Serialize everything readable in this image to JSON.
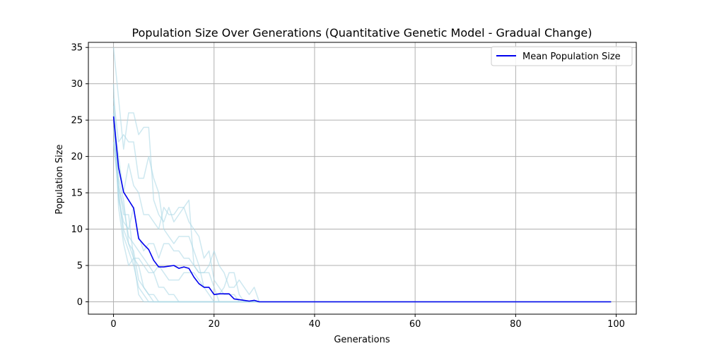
{
  "chart_data": {
    "type": "line",
    "title": "Population Size Over Generations (Quantitative Genetic Model - Gradual Change)",
    "xlabel": "Generations",
    "ylabel": "Population Size",
    "xlim": [
      -5,
      104
    ],
    "ylim": [
      -1.7,
      35.7
    ],
    "x_ticks": [
      0,
      20,
      40,
      60,
      80,
      100
    ],
    "y_ticks": [
      0,
      5,
      10,
      15,
      20,
      25,
      30,
      35
    ],
    "grid": true,
    "legend_position": "top-right",
    "colors": {
      "mean": "#0000ee",
      "runs": "#add8e6"
    },
    "series": [
      {
        "name": "Mean Population Size",
        "color": "#0000ee",
        "x": [
          0,
          1,
          2,
          3,
          4,
          5,
          6,
          7,
          8,
          9,
          10,
          11,
          12,
          13,
          14,
          15,
          16,
          17,
          18,
          19,
          20,
          21,
          22,
          23,
          24,
          25,
          26,
          27,
          28,
          29,
          99
        ],
        "y": [
          25.5,
          18.5,
          15.1,
          14.0,
          12.9,
          8.7,
          7.9,
          7.2,
          5.7,
          4.8,
          4.8,
          4.9,
          5.0,
          4.6,
          4.8,
          4.6,
          3.4,
          2.5,
          2.0,
          2.0,
          1.0,
          1.1,
          1.1,
          1.1,
          0.4,
          0.3,
          0.2,
          0.1,
          0.2,
          0.0,
          0.0
        ]
      }
    ],
    "runs": [
      {
        "x": [
          0,
          1,
          2,
          3,
          4,
          5,
          6,
          7,
          8,
          9,
          10,
          11,
          12,
          13,
          14,
          15,
          16,
          17,
          18,
          19,
          20,
          21,
          22,
          23,
          24,
          25,
          26,
          27,
          28,
          29,
          99
        ],
        "y": [
          35,
          28,
          21,
          26,
          26,
          23,
          24,
          24,
          14,
          12,
          11,
          13,
          11,
          12,
          13,
          14,
          5,
          4,
          4,
          5,
          7,
          5,
          4,
          2,
          2,
          3,
          2,
          1,
          2,
          0,
          0
        ]
      },
      {
        "x": [
          0,
          1,
          2,
          3,
          4,
          5,
          6,
          7,
          8,
          9,
          10,
          11,
          12,
          13,
          14,
          15,
          16,
          17,
          18,
          19,
          20,
          21,
          22,
          23,
          24,
          25,
          26,
          27,
          28,
          29,
          99
        ],
        "y": [
          28,
          22,
          23,
          22,
          22,
          17,
          17,
          20,
          17,
          15,
          10,
          9,
          8,
          9,
          9,
          9,
          7,
          5,
          2,
          2,
          1,
          1,
          2,
          4,
          4,
          1,
          0,
          0,
          0,
          0,
          0
        ]
      },
      {
        "x": [
          0,
          1,
          2,
          3,
          4,
          5,
          6,
          7,
          8,
          9,
          10,
          11,
          12,
          13,
          14,
          15,
          16,
          17,
          18,
          19,
          20,
          21,
          22,
          23,
          24,
          25,
          26,
          27,
          28,
          29,
          99
        ],
        "y": [
          25,
          20,
          15,
          19,
          16,
          15,
          12,
          12,
          11,
          10,
          13,
          12,
          12,
          13,
          13,
          11,
          10,
          9,
          6,
          7,
          3,
          2,
          1,
          1,
          1,
          0,
          0,
          0,
          0,
          0,
          0
        ]
      },
      {
        "x": [
          0,
          1,
          2,
          3,
          4,
          5,
          6,
          7,
          8,
          9,
          10,
          11,
          12,
          13,
          14,
          99
        ],
        "y": [
          24,
          16,
          12,
          12,
          6,
          6,
          5,
          4,
          4,
          2,
          2,
          1,
          1,
          0,
          0,
          0
        ]
      },
      {
        "x": [
          0,
          1,
          2,
          3,
          4,
          5,
          6,
          7,
          8,
          9,
          10,
          11,
          12,
          13,
          14,
          15,
          16,
          17,
          18,
          19,
          20,
          21,
          99
        ],
        "y": [
          22,
          16,
          13,
          9,
          8,
          7,
          6,
          5,
          4,
          5,
          4,
          3,
          3,
          3,
          4,
          4,
          4,
          3,
          2,
          1,
          0,
          0,
          0
        ]
      },
      {
        "x": [
          0,
          1,
          2,
          3,
          4,
          5,
          6,
          7,
          8,
          9,
          10,
          11,
          12,
          13,
          14,
          15,
          16,
          17,
          18,
          19,
          20,
          21,
          99
        ],
        "y": [
          30,
          14,
          11,
          10,
          13,
          9,
          7,
          8,
          8,
          6,
          8,
          8,
          7,
          7,
          6,
          6,
          5,
          4,
          4,
          4,
          2,
          0,
          0
        ]
      },
      {
        "x": [
          0,
          1,
          2,
          3,
          4,
          5,
          6,
          7,
          8,
          9,
          99
        ],
        "y": [
          22,
          15,
          9,
          7,
          5,
          2,
          1,
          0,
          0,
          0,
          0
        ]
      },
      {
        "x": [
          0,
          1,
          2,
          3,
          4,
          5,
          6,
          7,
          8,
          9,
          10,
          11,
          12,
          13,
          99
        ],
        "y": [
          26,
          17,
          14,
          8,
          6,
          5,
          2,
          1,
          1,
          0,
          0,
          0,
          0,
          0,
          0
        ]
      },
      {
        "x": [
          0,
          1,
          2,
          3,
          4,
          5,
          6,
          7,
          8,
          99
        ],
        "y": [
          27,
          13,
          8,
          5,
          6,
          1,
          0,
          0,
          0,
          0
        ]
      },
      {
        "x": [
          0,
          1,
          2,
          3,
          4,
          5,
          6,
          7,
          8,
          9,
          10,
          11,
          12,
          13,
          14,
          15,
          16,
          17,
          18,
          19,
          20,
          99
        ],
        "y": [
          26,
          15,
          10,
          8,
          7,
          3,
          2,
          1,
          0,
          0,
          0,
          0,
          0,
          0,
          0,
          0,
          0,
          0,
          0,
          0,
          0,
          0
        ]
      }
    ]
  }
}
